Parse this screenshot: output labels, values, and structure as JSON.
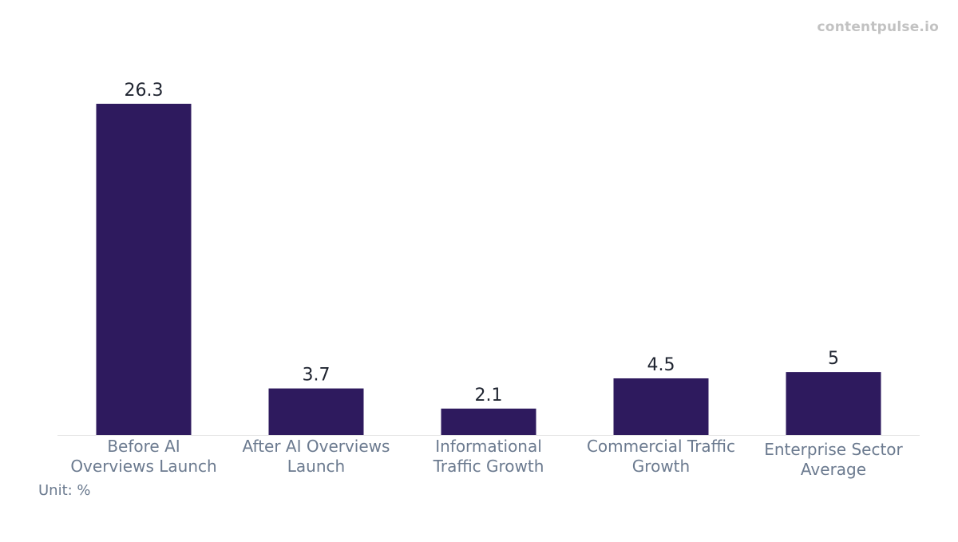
{
  "watermark": "contentpulse.io",
  "unit_label": "Unit: %",
  "colors": {
    "bar": "#2e1a5e",
    "value_text": "#1f2430",
    "tick_text": "#6b7a8f",
    "baseline": "#e6e6e6",
    "watermark": "#c2c2c2"
  },
  "chart_data": {
    "type": "bar",
    "title": "",
    "xlabel": "",
    "ylabel": "",
    "categories": [
      [
        "Before AI",
        "Overviews Launch"
      ],
      [
        "After AI Overviews",
        "Launch"
      ],
      [
        "Informational",
        "Traffic Growth"
      ],
      [
        "Commercial Traffic",
        "Growth"
      ],
      [
        "Enterprise Sector",
        "Average"
      ]
    ],
    "values": [
      26.3,
      3.7,
      2.1,
      4.5,
      5
    ],
    "value_labels": [
      "26.3",
      "3.7",
      "2.1",
      "4.5",
      "5"
    ],
    "ylim": [
      0,
      26.3
    ],
    "grid": false,
    "legend": "none"
  }
}
